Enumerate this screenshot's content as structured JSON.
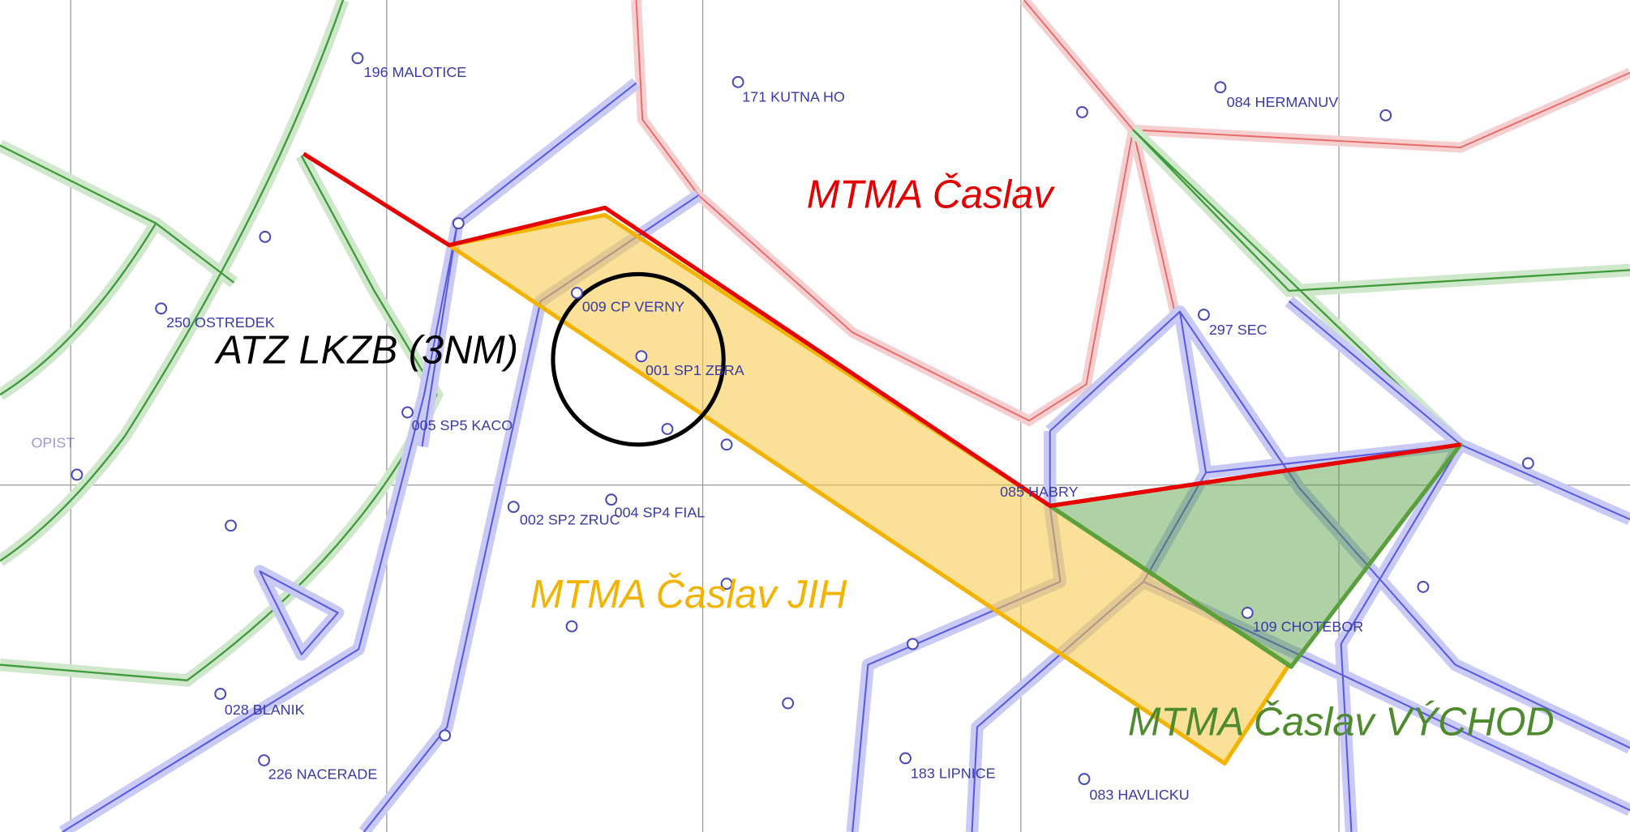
{
  "regions": [
    {
      "label": "MTMA Časlav"
    },
    {
      "label": "ATZ LKZB (3NM)"
    },
    {
      "label": "MTMA Časlav JIH"
    },
    {
      "label": "MTMA Časlav VÝCHOD"
    }
  ],
  "waypoints": [
    {
      "label": "196 MALOTICE"
    },
    {
      "label": "171 KUTNA HO"
    },
    {
      "label": "084 HERMANUV"
    },
    {
      "label": "250 OSTREDEK"
    },
    {
      "label": "297 SEC"
    },
    {
      "label": "009 CP VERNY"
    },
    {
      "label": "001 SP1 ZBRA"
    },
    {
      "label": "005 SP5 KACO"
    },
    {
      "label": "OPIST"
    },
    {
      "label": "002 SP2 ZRUC"
    },
    {
      "label": "004 SP4 FIAL"
    },
    {
      "label": "085 HABRY"
    },
    {
      "label": "109 CHOTEBOR"
    },
    {
      "label": "028 BLANIK"
    },
    {
      "label": "226 NACERADE"
    },
    {
      "label": "183 LIPNICE"
    },
    {
      "label": "083 HAVLICKU"
    }
  ]
}
